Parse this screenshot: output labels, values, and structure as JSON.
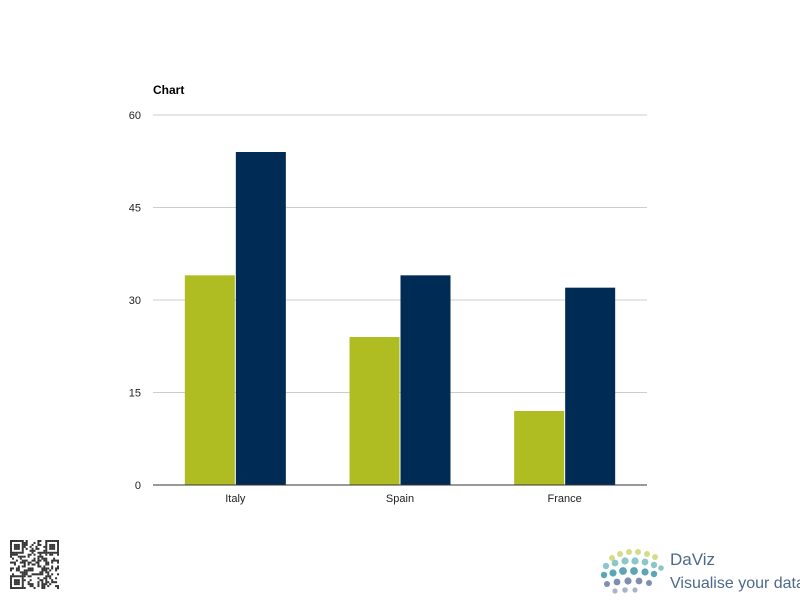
{
  "chart_data": {
    "type": "bar",
    "title": "Chart",
    "categories": [
      "Italy",
      "Spain",
      "France"
    ],
    "series": [
      {
        "values": [
          34,
          24,
          12
        ],
        "color": "#afbd22"
      },
      {
        "values": [
          54,
          34,
          32
        ],
        "color": "#002b54"
      }
    ],
    "ylim": [
      0,
      60
    ],
    "yticks": [
      0,
      15,
      30,
      45,
      60
    ],
    "grid": true,
    "legend": "none"
  },
  "branding": {
    "name": "DaViz",
    "tagline": "Visualise your data",
    "qr_icon": "qr-code-icon",
    "logo_icon": "dots-globe-icon",
    "text_color": "#4d6a8a"
  }
}
